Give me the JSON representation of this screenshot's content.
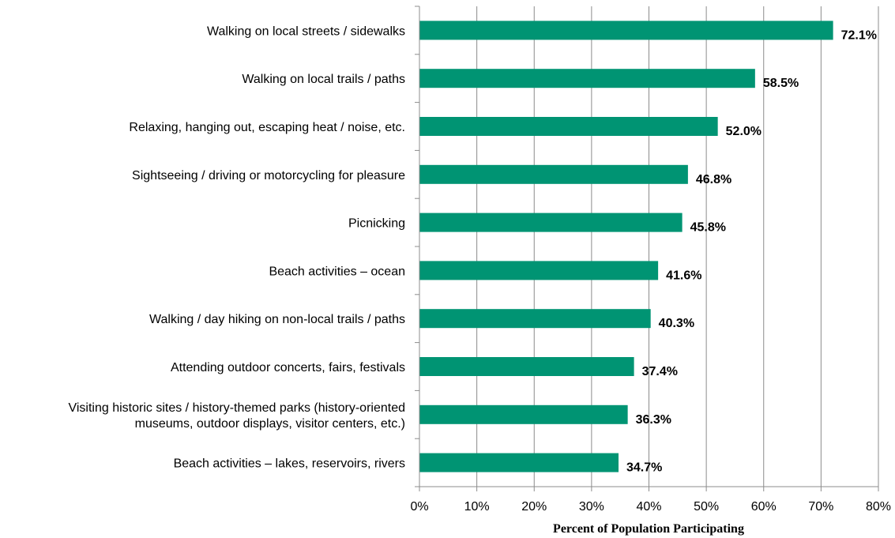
{
  "chart_data": {
    "type": "bar",
    "orientation": "horizontal",
    "categories": [
      "Walking on local streets / sidewalks",
      "Walking on local trails / paths",
      "Relaxing, hanging out, escaping heat / noise, etc.",
      "Sightseeing / driving or motorcycling for pleasure",
      "Picnicking",
      "Beach activities – ocean",
      "Walking / day hiking on non-local trails / paths",
      "Attending outdoor concerts, fairs, festivals",
      "Visiting historic sites / history-themed parks (history-oriented museums, outdoor displays, visitor centers, etc.)",
      "Beach activities – lakes, reservoirs, rivers"
    ],
    "category_lines": [
      [
        "Walking on local streets / sidewalks"
      ],
      [
        "Walking on local trails / paths"
      ],
      [
        "Relaxing, hanging out, escaping heat / noise, etc."
      ],
      [
        "Sightseeing / driving or motorcycling for pleasure"
      ],
      [
        "Picnicking"
      ],
      [
        "Beach activities – ocean"
      ],
      [
        "Walking / day hiking on non-local trails / paths"
      ],
      [
        "Attending outdoor concerts, fairs, festivals"
      ],
      [
        "Visiting historic sites / history-themed parks (history-oriented",
        "museums, outdoor displays, visitor centers, etc.)"
      ],
      [
        "Beach activities – lakes, reservoirs, rivers"
      ]
    ],
    "values": [
      72.1,
      58.5,
      52.0,
      46.8,
      45.8,
      41.6,
      40.3,
      37.4,
      36.3,
      34.7
    ],
    "value_labels": [
      "72.1%",
      "58.5%",
      "52.0%",
      "46.8%",
      "45.8%",
      "41.6%",
      "40.3%",
      "37.4%",
      "36.3%",
      "34.7%"
    ],
    "xlim": [
      0,
      80
    ],
    "x_ticks": [
      0,
      10,
      20,
      30,
      40,
      50,
      60,
      70,
      80
    ],
    "x_tick_labels": [
      "0%",
      "10%",
      "20%",
      "30%",
      "40%",
      "50%",
      "60%",
      "70%",
      "80%"
    ],
    "xlabel": "Percent of Population Participating",
    "title": "",
    "grid": "vertical",
    "bar_color": "#009473",
    "grid_color": "#8c8c8c"
  }
}
